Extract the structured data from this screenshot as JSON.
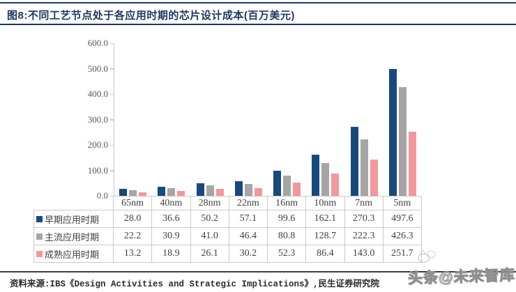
{
  "header": {
    "title": "图8:不同工艺节点处于各应用时期的芯片设计成本(百万美元)"
  },
  "chart_data": {
    "type": "bar",
    "title": "不同工艺节点处于各应用时期的芯片设计成本(百万美元)",
    "categories": [
      "65nm",
      "40nm",
      "28nm",
      "22nm",
      "16nm",
      "10nm",
      "7nm",
      "5nm"
    ],
    "series": [
      {
        "name": "早期应用时期",
        "color": "#17497f",
        "values": [
          28.0,
          36.6,
          50.2,
          57.1,
          99.6,
          162.1,
          270.3,
          497.6
        ]
      },
      {
        "name": "主流应用时期",
        "color": "#a5a5a5",
        "values": [
          22.2,
          30.9,
          41.0,
          46.4,
          80.8,
          128.7,
          222.3,
          426.3
        ]
      },
      {
        "name": "成熟应用时期",
        "color": "#f2979d",
        "values": [
          13.2,
          18.9,
          26.1,
          30.2,
          52.3,
          86.4,
          143.0,
          251.7
        ]
      }
    ],
    "xlabel": "",
    "ylabel": "",
    "ylim": [
      0,
      600
    ],
    "ytick_step": 100,
    "ytick_labels": [
      "600.0",
      "500.0",
      "400.0",
      "300.0",
      "200.0",
      "100.0",
      "0.0"
    ],
    "grid": false,
    "legend_position": "data-table-left",
    "data_table_shown": true
  },
  "footer": {
    "source": "资料来源:IBS《Design Activities and Strategic Implications》,民生证券研究院"
  },
  "watermark": {
    "text": "头条@未来智库"
  }
}
